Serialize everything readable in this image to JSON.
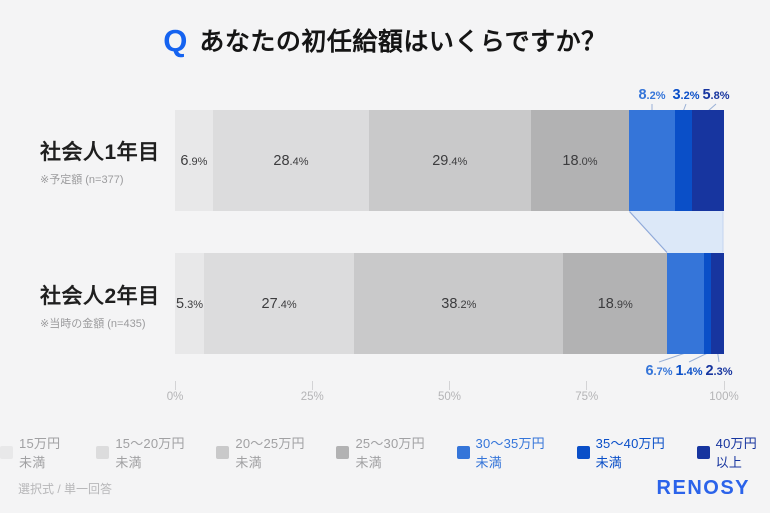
{
  "title": {
    "q_mark": "Q",
    "text": "あなたの初任給額はいくらですか？"
  },
  "chart_data": {
    "type": "bar",
    "variant": "horizontal-stacked",
    "unit": "%",
    "categories": [
      "15万円未満",
      "15〜20万円未満",
      "20〜25万円未満",
      "25〜30万円未満",
      "30〜35万円未満",
      "35〜40万円未満",
      "40万円以上"
    ],
    "colors": [
      "#e8e8e9",
      "#dcdcdd",
      "#c9c9ca",
      "#b2b2b3",
      "#3575d9",
      "#0a4fc8",
      "#17359f"
    ],
    "series": [
      {
        "name": "社会人1年目",
        "note": "※予定額 (n=377)",
        "values": [
          6.9,
          28.4,
          29.4,
          18.0,
          8.2,
          3.2,
          5.8
        ]
      },
      {
        "name": "社会人2年目",
        "note": "※当時の金額 (n=435)",
        "values": [
          5.3,
          27.4,
          38.2,
          18.9,
          6.7,
          1.4,
          2.3
        ]
      }
    ],
    "axis": {
      "tick_labels": [
        "0%",
        "25%",
        "50%",
        "75%",
        "100%"
      ],
      "range": [
        0,
        100
      ],
      "grid": false
    },
    "legend_position": "bottom",
    "annotations": "blue segment values are labeled outside the bars (above bar 1, below bar 2)"
  },
  "theme": {
    "background": "#f4f4f5",
    "q_blue": "#1563f0",
    "ribbon_fill": "#dce8f8",
    "ribbon_edge": "#8fa9d9",
    "ribbon_edge_light": "#c5d5ef",
    "leader_line": "#9ab1d6",
    "gray_legend_text": "#a1a1a3",
    "brand_blue": "#2b63ea"
  },
  "footer": {
    "note": "選択式 / 単一回答",
    "brand": "RENOSY"
  }
}
